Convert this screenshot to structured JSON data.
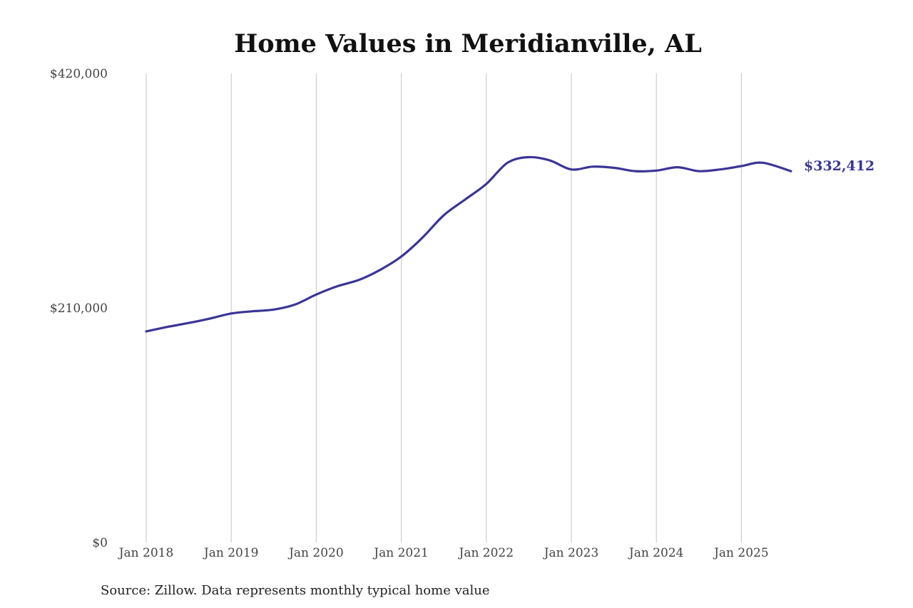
{
  "chart_data": {
    "type": "line",
    "title": "Home Values in Meridianville, AL",
    "source": "Source: Zillow. Data represents monthly typical home value",
    "ylim": [
      0,
      420000
    ],
    "y_ticks": [
      {
        "value": 0,
        "label": "$0"
      },
      {
        "value": 210000,
        "label": "$210,000"
      },
      {
        "value": 420000,
        "label": "$420,000"
      }
    ],
    "x_ticks": [
      {
        "value": "2018-01",
        "label": "Jan 2018"
      },
      {
        "value": "2019-01",
        "label": "Jan 2019"
      },
      {
        "value": "2020-01",
        "label": "Jan 2020"
      },
      {
        "value": "2021-01",
        "label": "Jan 2021"
      },
      {
        "value": "2022-01",
        "label": "Jan 2022"
      },
      {
        "value": "2023-01",
        "label": "Jan 2023"
      },
      {
        "value": "2024-01",
        "label": "Jan 2024"
      },
      {
        "value": "2025-01",
        "label": "Jan 2025"
      }
    ],
    "grid": "vertical",
    "line_color": "#3b3596",
    "end_label": "$332,412",
    "series": [
      {
        "x": [
          "2018-01",
          "2018-04",
          "2018-07",
          "2018-10",
          "2019-01",
          "2019-04",
          "2019-07",
          "2019-10",
          "2020-01",
          "2020-04",
          "2020-07",
          "2020-10",
          "2021-01",
          "2021-04",
          "2021-07",
          "2021-10",
          "2022-01",
          "2022-04",
          "2022-07",
          "2022-10",
          "2023-01",
          "2023-04",
          "2023-07",
          "2023-10",
          "2024-01",
          "2024-04",
          "2024-07",
          "2024-10",
          "2025-01",
          "2025-04",
          "2025-08"
        ],
        "values": [
          189000,
          193000,
          196500,
          200500,
          205000,
          207000,
          208500,
          213000,
          222000,
          229500,
          235000,
          244000,
          256000,
          273000,
          293000,
          307000,
          321000,
          340000,
          345000,
          342000,
          334000,
          336500,
          335500,
          332500,
          333000,
          336000,
          332500,
          334000,
          337000,
          340000,
          332412
        ]
      }
    ]
  }
}
